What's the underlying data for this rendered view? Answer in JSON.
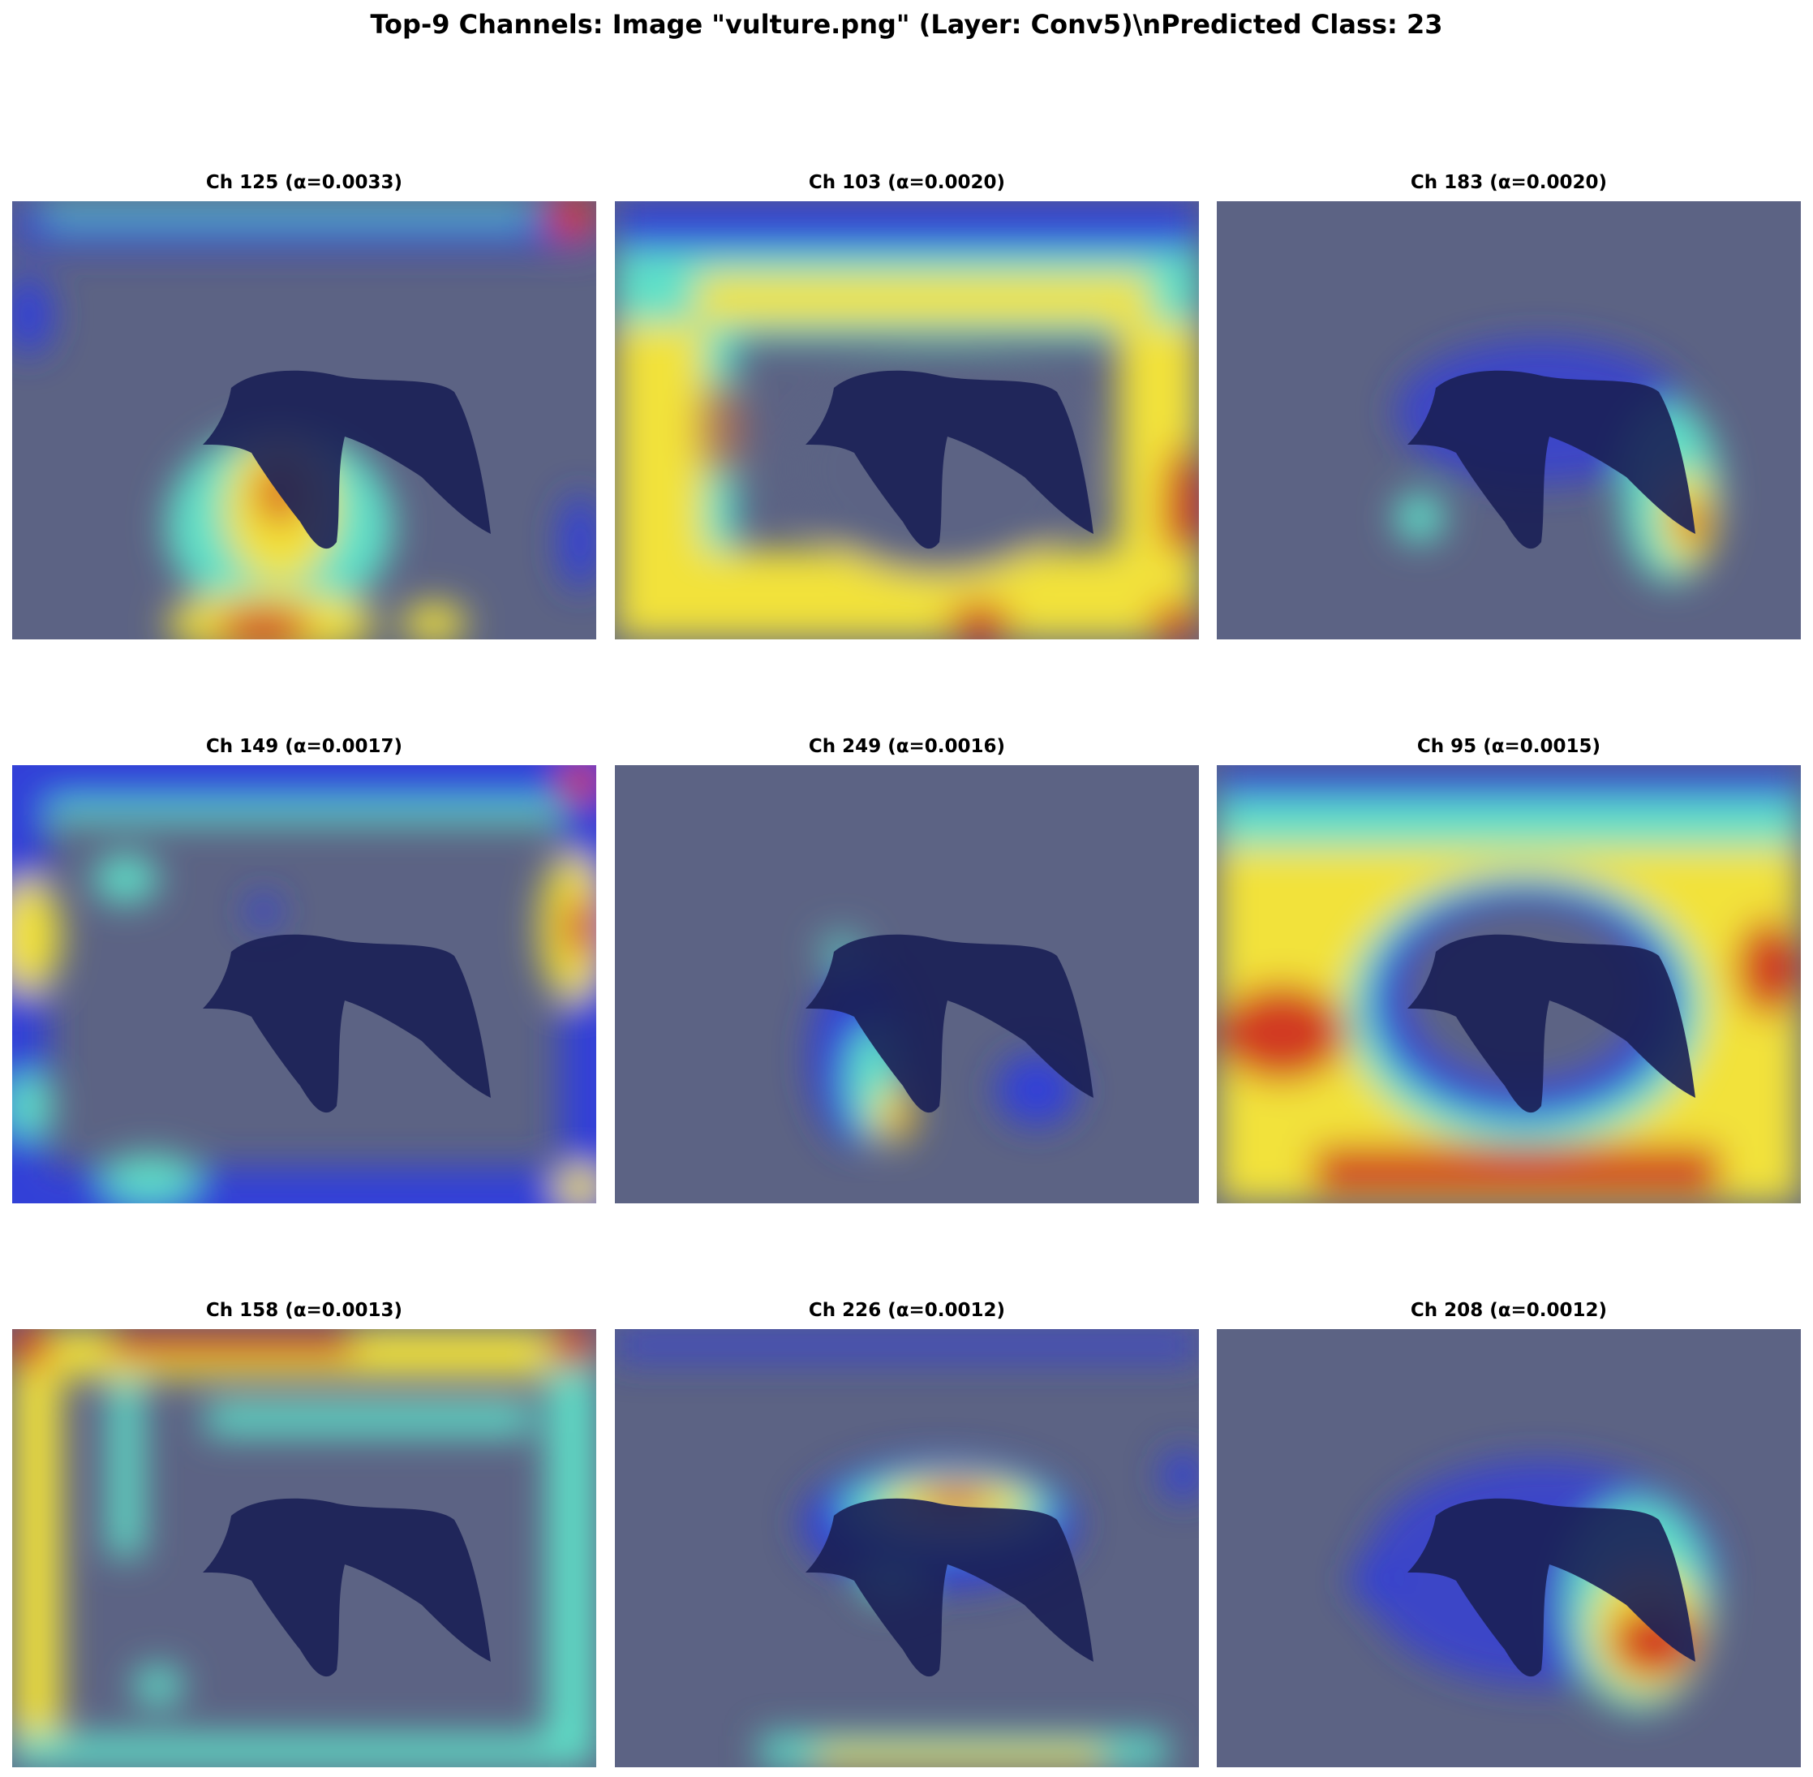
{
  "figure": {
    "title": "Top-9 Channels: Image \"vulture.png\" (Layer: Conv5)\\nPredicted Class: 23"
  },
  "panels": [
    {
      "title": "Ch 125 (α=0.0033)"
    },
    {
      "title": "Ch 103 (α=0.0020)"
    },
    {
      "title": "Ch 183 (α=0.0020)"
    },
    {
      "title": "Ch 149 (α=0.0017)"
    },
    {
      "title": "Ch 249 (α=0.0016)"
    },
    {
      "title": "Ch 95 (α=0.0015)"
    },
    {
      "title": "Ch 158 (α=0.0013)"
    },
    {
      "title": "Ch 226 (α=0.0012)"
    },
    {
      "title": "Ch 208 (α=0.0012)"
    }
  ],
  "colors": {
    "background_overlay": "#5c6384",
    "bird": "#1a1f55",
    "heat_low": "#3340d8",
    "heat_mid": "#5fe0c8",
    "heat_high": "#f2e23a",
    "heat_peak": "#d23a20"
  }
}
